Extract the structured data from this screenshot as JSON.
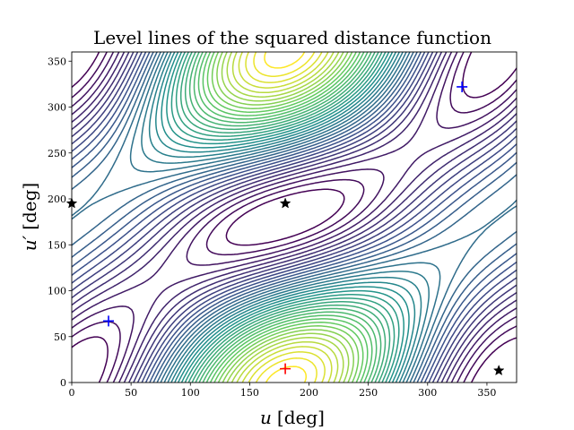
{
  "chart_data": {
    "type": "contour",
    "title": "Level lines of the squared distance function",
    "xlabel_var": "u",
    "xlabel_unit": "[deg]",
    "ylabel_var": "u′",
    "ylabel_unit": "[deg]",
    "xlim": [
      0,
      375
    ],
    "ylim": [
      0,
      360
    ],
    "xticks": [
      0,
      50,
      100,
      150,
      200,
      250,
      300,
      350
    ],
    "yticks": [
      0,
      50,
      100,
      150,
      200,
      250,
      300,
      350
    ],
    "grid": false,
    "colormap": [
      "#440154",
      "#3b528b",
      "#21918c",
      "#5ec962",
      "#fde725"
    ],
    "markers": [
      {
        "type": "plus",
        "color": "#0000ff",
        "x": 31,
        "y": 67
      },
      {
        "type": "plus",
        "color": "#0000ff",
        "x": 329,
        "y": 322
      },
      {
        "type": "plus",
        "color": "#ff0000",
        "x": 180,
        "y": 15
      },
      {
        "type": "star",
        "color": "#000000",
        "x": 180,
        "y": 195
      },
      {
        "type": "star",
        "color": "#000000",
        "x": 0,
        "y": 195
      },
      {
        "type": "star",
        "color": "#000000",
        "x": 360,
        "y": 13
      }
    ]
  }
}
